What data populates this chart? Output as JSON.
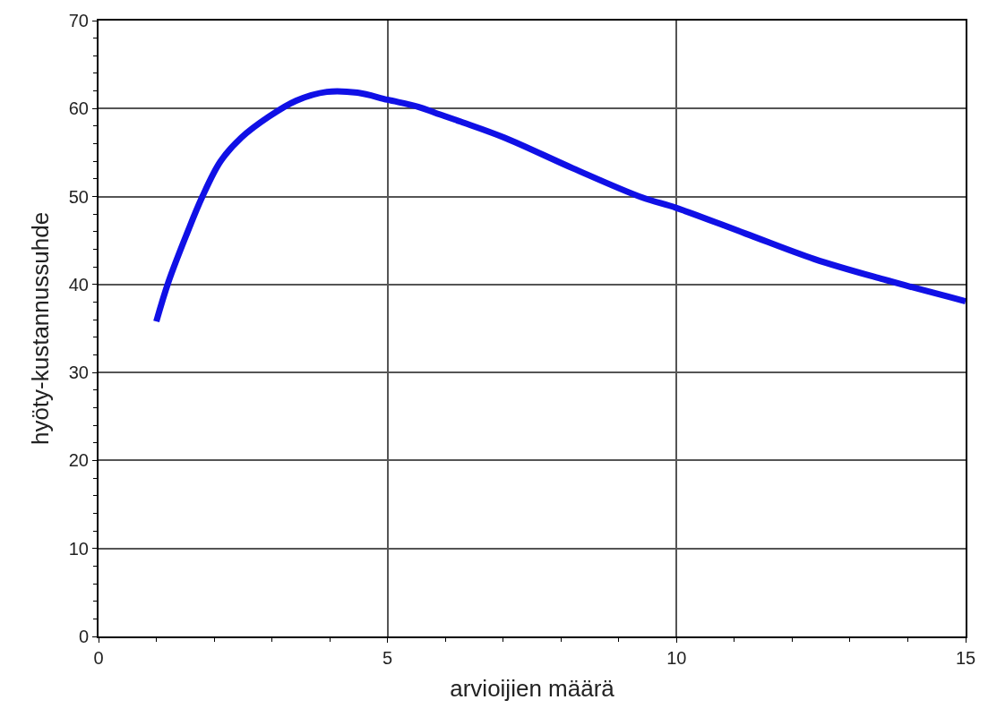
{
  "chart_data": {
    "type": "line",
    "xlabel": "arvioijien määrä",
    "ylabel": "hyöty-kustannussuhde",
    "series": [
      {
        "color": "#1010e6",
        "x": [
          1.0,
          1.21,
          1.53,
          1.79,
          2.11,
          2.47,
          2.95,
          3.42,
          3.95,
          4.48,
          5.0,
          5.53,
          5.83,
          6.27,
          7.02,
          8.21,
          9.4,
          10.0,
          11.19,
          12.38,
          13.57,
          15.0
        ],
        "values": [
          35.8,
          40.3,
          45.8,
          49.9,
          54.0,
          56.7,
          59.1,
          60.9,
          61.9,
          61.8,
          61.0,
          60.2,
          59.5,
          58.5,
          56.7,
          53.2,
          49.9,
          48.7,
          45.8,
          42.9,
          40.6,
          38.1
        ]
      }
    ],
    "xlim": [
      0,
      15
    ],
    "xticks": [
      0,
      5,
      10,
      15
    ],
    "ylim": [
      0,
      70
    ],
    "yticks": [
      0,
      10,
      20,
      30,
      40,
      50,
      60,
      70
    ],
    "grid": true,
    "marker": "none",
    "line_style": "solid"
  }
}
